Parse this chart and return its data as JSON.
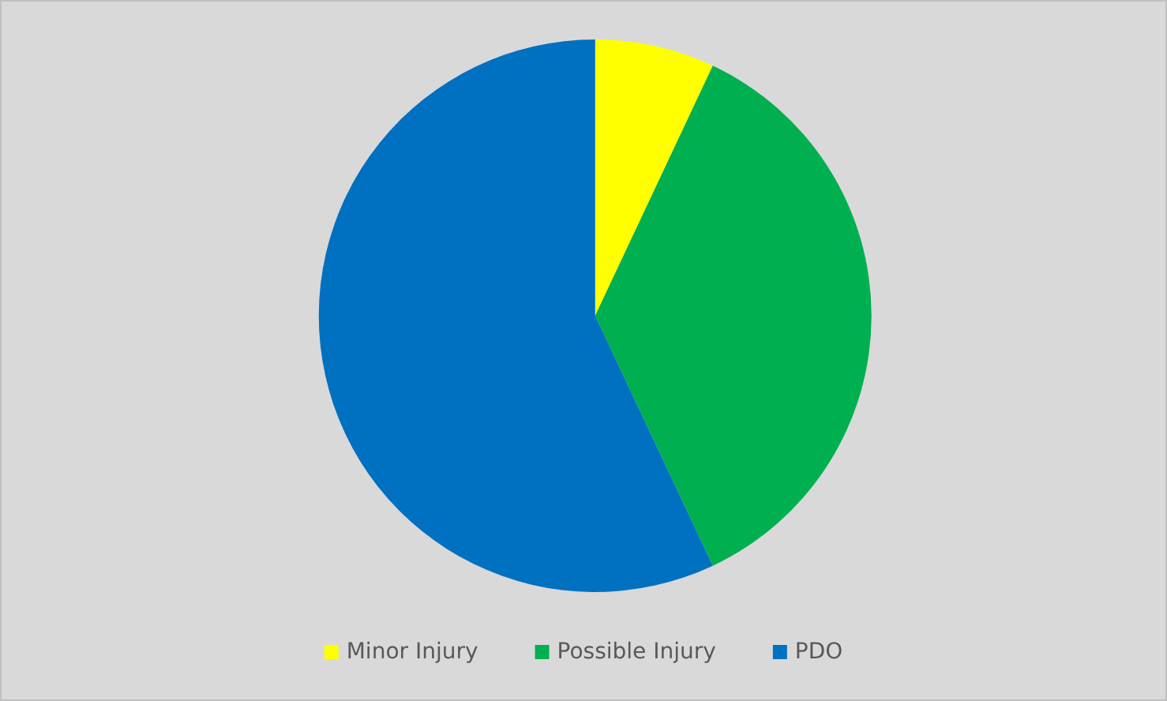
{
  "chart_data": {
    "type": "pie",
    "categories": [
      "Minor Injury",
      "Possible Injury",
      "PDO"
    ],
    "values": [
      7,
      36,
      57
    ],
    "colors": [
      "#ffff00",
      "#00b050",
      "#0070c0"
    ],
    "legend": "bottom"
  }
}
